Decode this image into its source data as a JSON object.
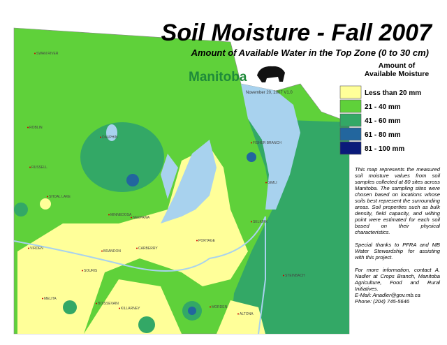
{
  "header": {
    "title": "Soil Moisture - Fall 2007",
    "subtitle": "Amount of Available Water in the Top Zone (0 to 30 cm)",
    "logo": "Manitoba",
    "date": "November 20, 2007   V1.0"
  },
  "legend": {
    "title": "Amount of Available Moisture",
    "items": [
      {
        "label": "Less than 20 mm",
        "color": "#ffff99"
      },
      {
        "label": "21 - 40 mm",
        "color": "#5fd13a"
      },
      {
        "label": "41 - 60 mm",
        "color": "#33a866"
      },
      {
        "label": "61 - 80 mm",
        "color": "#22669e"
      },
      {
        "label": "81 - 100 mm",
        "color": "#0a1a7a"
      }
    ]
  },
  "notes": [
    "This map represents the measured soil moisture values from soil samples collected at 80 sites across Manitoba. The sampling sites were chosen based on locations whose soils best represent the surrounding areas. Soil properties such as bulk density, field capacity, and wilting point were estimated for each soil based on their physical characteristics.",
    "Special thanks to PFRA and MB Water Stewardship for assisting with this project.",
    "For more information, contact A. Nadler at Crops Branch, Manitoba Agriculture, Food and Rural Initiatives.",
    "E-Mail: Anadler@gov.mb.ca",
    "Phone: (204) 745-5646"
  ],
  "towns": [
    "SWAN RIVER",
    "ROBLIN",
    "DAUPHIN",
    "RUSSELL",
    "SHOAL LAKE",
    "MINNEDOSA",
    "NEEPAWA",
    "VIRDEN",
    "BRANDON",
    "CARBERRY",
    "PORTAGE",
    "SOURIS",
    "MELITA",
    "BOISSEVAIN",
    "KILLARNEY",
    "MORDEN",
    "ALTONA",
    "FISHER BRANCH",
    "GIMLI",
    "SELKIRK",
    "STEINBACH"
  ]
}
